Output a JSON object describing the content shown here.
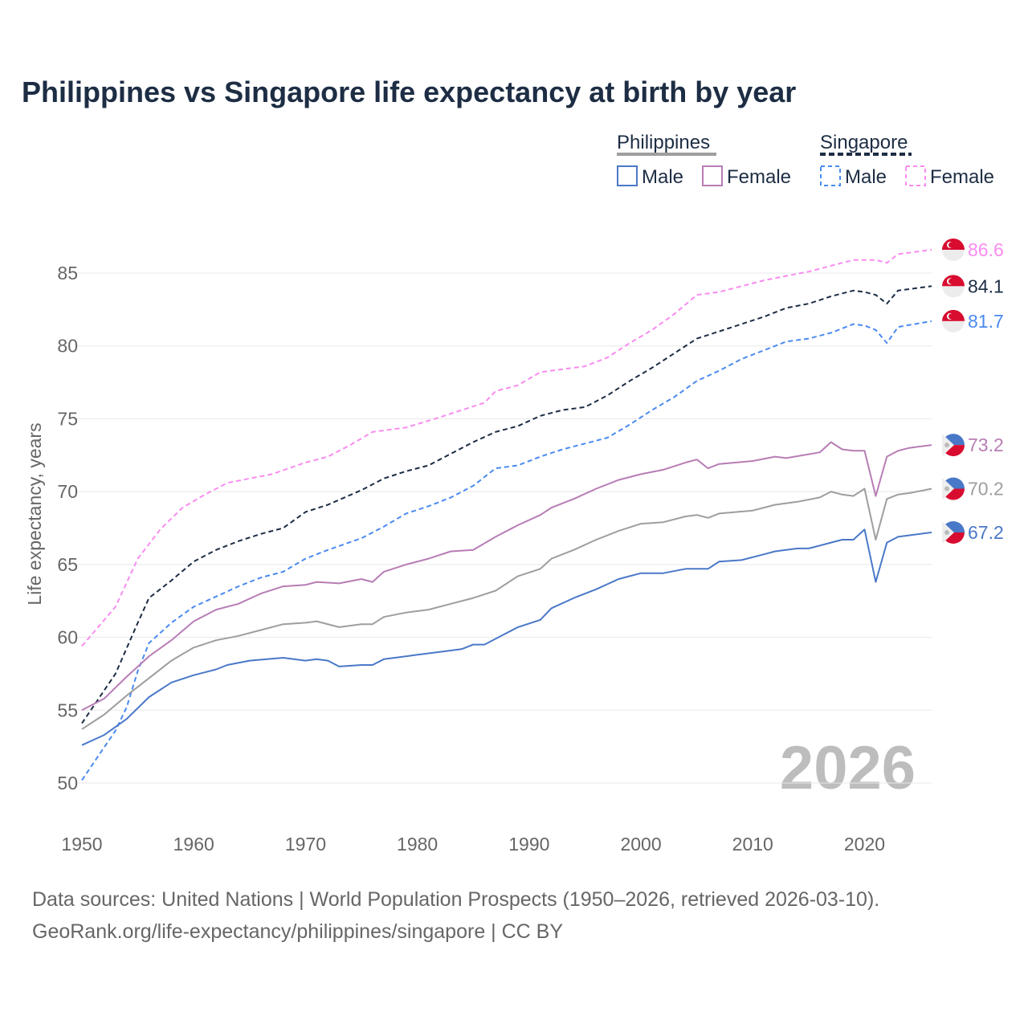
{
  "chart_data": {
    "type": "line",
    "title": "Philippines vs Singapore life expectancy at birth by year",
    "xlabel": "",
    "ylabel": "Life expectancy, years",
    "xlim": [
      1950,
      2026
    ],
    "ylim": [
      50,
      85
    ],
    "xticks": [
      "1950",
      "1960",
      "1970",
      "1980",
      "1990",
      "2000",
      "2010",
      "2020"
    ],
    "yticks": [
      "50",
      "55",
      "60",
      "65",
      "70",
      "75",
      "80",
      "85"
    ],
    "grid": true,
    "year_watermark": "2026",
    "legend": {
      "placement": "top-right",
      "groups": [
        {
          "name": "Philippines",
          "color": "#9e9e9e",
          "dash": false,
          "items": [
            {
              "label": "Male",
              "color": "#4a78c8"
            },
            {
              "label": "Female",
              "color": "#b77db5"
            }
          ]
        },
        {
          "name": "Singapore",
          "color": "#1d2d44",
          "dash": true,
          "items": [
            {
              "label": "Male",
              "color": "#4a8af0"
            },
            {
              "label": "Female",
              "color": "#f98cf0"
            }
          ]
        }
      ]
    },
    "series": [
      {
        "name": "Singapore Female",
        "country": "singapore",
        "color": "#f98cf0",
        "dash": true,
        "end_label": "86.6",
        "points": [
          [
            1950,
            59.4
          ],
          [
            1953,
            62.1
          ],
          [
            1955,
            65.4
          ],
          [
            1957,
            67.4
          ],
          [
            1959,
            68.9
          ],
          [
            1961,
            69.8
          ],
          [
            1963,
            70.6
          ],
          [
            1965,
            70.9
          ],
          [
            1967,
            71.2
          ],
          [
            1970,
            72.0
          ],
          [
            1972,
            72.4
          ],
          [
            1974,
            73.2
          ],
          [
            1976,
            74.1
          ],
          [
            1979,
            74.4
          ],
          [
            1982,
            75.1
          ],
          [
            1984,
            75.6
          ],
          [
            1986,
            76.1
          ],
          [
            1987,
            76.9
          ],
          [
            1989,
            77.3
          ],
          [
            1991,
            78.2
          ],
          [
            1993,
            78.4
          ],
          [
            1995,
            78.6
          ],
          [
            1997,
            79.2
          ],
          [
            1999,
            80.2
          ],
          [
            2001,
            81.1
          ],
          [
            2003,
            82.2
          ],
          [
            2005,
            83.5
          ],
          [
            2007,
            83.7
          ],
          [
            2009,
            84.1
          ],
          [
            2011,
            84.5
          ],
          [
            2013,
            84.8
          ],
          [
            2015,
            85.1
          ],
          [
            2017,
            85.5
          ],
          [
            2019,
            85.9
          ],
          [
            2021,
            85.9
          ],
          [
            2022,
            85.7
          ],
          [
            2023,
            86.3
          ],
          [
            2026,
            86.6
          ]
        ]
      },
      {
        "name": "Singapore",
        "country": "singapore",
        "color": "#1d2d44",
        "dash": true,
        "end_label": "84.1",
        "points": [
          [
            1950,
            54.1
          ],
          [
            1953,
            57.5
          ],
          [
            1955,
            61.0
          ],
          [
            1956,
            62.7
          ],
          [
            1958,
            63.9
          ],
          [
            1960,
            65.2
          ],
          [
            1962,
            66.0
          ],
          [
            1964,
            66.6
          ],
          [
            1966,
            67.1
          ],
          [
            1968,
            67.5
          ],
          [
            1970,
            68.6
          ],
          [
            1972,
            69.1
          ],
          [
            1975,
            70.1
          ],
          [
            1977,
            70.9
          ],
          [
            1979,
            71.4
          ],
          [
            1981,
            71.8
          ],
          [
            1983,
            72.6
          ],
          [
            1985,
            73.4
          ],
          [
            1987,
            74.1
          ],
          [
            1989,
            74.5
          ],
          [
            1991,
            75.2
          ],
          [
            1993,
            75.6
          ],
          [
            1995,
            75.8
          ],
          [
            1997,
            76.6
          ],
          [
            1999,
            77.6
          ],
          [
            2001,
            78.5
          ],
          [
            2003,
            79.5
          ],
          [
            2005,
            80.5
          ],
          [
            2007,
            81.0
          ],
          [
            2009,
            81.5
          ],
          [
            2011,
            82.0
          ],
          [
            2013,
            82.6
          ],
          [
            2015,
            82.9
          ],
          [
            2017,
            83.4
          ],
          [
            2019,
            83.8
          ],
          [
            2020,
            83.7
          ],
          [
            2021,
            83.5
          ],
          [
            2022,
            82.9
          ],
          [
            2023,
            83.8
          ],
          [
            2026,
            84.1
          ]
        ]
      },
      {
        "name": "Singapore Male",
        "country": "singapore",
        "color": "#4a8af0",
        "dash": true,
        "end_label": "81.7",
        "points": [
          [
            1950,
            50.2
          ],
          [
            1953,
            53.6
          ],
          [
            1954,
            55.2
          ],
          [
            1955,
            57.7
          ],
          [
            1956,
            59.6
          ],
          [
            1958,
            61.0
          ],
          [
            1960,
            62.1
          ],
          [
            1962,
            62.8
          ],
          [
            1964,
            63.5
          ],
          [
            1966,
            64.1
          ],
          [
            1968,
            64.5
          ],
          [
            1970,
            65.4
          ],
          [
            1972,
            66.0
          ],
          [
            1975,
            66.8
          ],
          [
            1977,
            67.6
          ],
          [
            1979,
            68.5
          ],
          [
            1981,
            69.0
          ],
          [
            1983,
            69.6
          ],
          [
            1985,
            70.4
          ],
          [
            1987,
            71.6
          ],
          [
            1989,
            71.8
          ],
          [
            1991,
            72.4
          ],
          [
            1993,
            72.9
          ],
          [
            1995,
            73.3
          ],
          [
            1997,
            73.7
          ],
          [
            1999,
            74.6
          ],
          [
            2001,
            75.6
          ],
          [
            2003,
            76.5
          ],
          [
            2005,
            77.6
          ],
          [
            2007,
            78.3
          ],
          [
            2009,
            79.1
          ],
          [
            2011,
            79.7
          ],
          [
            2013,
            80.3
          ],
          [
            2015,
            80.5
          ],
          [
            2017,
            80.9
          ],
          [
            2019,
            81.5
          ],
          [
            2020,
            81.4
          ],
          [
            2021,
            81.1
          ],
          [
            2022,
            80.2
          ],
          [
            2023,
            81.3
          ],
          [
            2026,
            81.7
          ]
        ]
      },
      {
        "name": "Philippines Female",
        "country": "philippines",
        "color": "#b77db5",
        "dash": false,
        "end_label": "73.2",
        "points": [
          [
            1950,
            55.0
          ],
          [
            1952,
            55.8
          ],
          [
            1954,
            57.3
          ],
          [
            1956,
            58.7
          ],
          [
            1958,
            59.8
          ],
          [
            1960,
            61.1
          ],
          [
            1962,
            61.9
          ],
          [
            1964,
            62.3
          ],
          [
            1966,
            63.0
          ],
          [
            1968,
            63.5
          ],
          [
            1970,
            63.6
          ],
          [
            1971,
            63.8
          ],
          [
            1973,
            63.7
          ],
          [
            1975,
            64.0
          ],
          [
            1976,
            63.8
          ],
          [
            1977,
            64.5
          ],
          [
            1979,
            65.0
          ],
          [
            1981,
            65.4
          ],
          [
            1983,
            65.9
          ],
          [
            1985,
            66.0
          ],
          [
            1987,
            66.9
          ],
          [
            1989,
            67.7
          ],
          [
            1991,
            68.4
          ],
          [
            1992,
            68.9
          ],
          [
            1994,
            69.5
          ],
          [
            1996,
            70.2
          ],
          [
            1998,
            70.8
          ],
          [
            2000,
            71.2
          ],
          [
            2002,
            71.5
          ],
          [
            2004,
            72.0
          ],
          [
            2005,
            72.2
          ],
          [
            2006,
            71.6
          ],
          [
            2007,
            71.9
          ],
          [
            2010,
            72.1
          ],
          [
            2012,
            72.4
          ],
          [
            2013,
            72.3
          ],
          [
            2016,
            72.7
          ],
          [
            2017,
            73.4
          ],
          [
            2018,
            72.9
          ],
          [
            2019,
            72.8
          ],
          [
            2020,
            72.8
          ],
          [
            2021,
            69.7
          ],
          [
            2022,
            72.4
          ],
          [
            2023,
            72.8
          ],
          [
            2024,
            73.0
          ],
          [
            2026,
            73.2
          ]
        ]
      },
      {
        "name": "Philippines",
        "country": "philippines",
        "color": "#9e9e9e",
        "dash": false,
        "end_label": "70.2",
        "points": [
          [
            1950,
            53.7
          ],
          [
            1952,
            54.7
          ],
          [
            1954,
            56.0
          ],
          [
            1956,
            57.2
          ],
          [
            1958,
            58.4
          ],
          [
            1960,
            59.3
          ],
          [
            1962,
            59.8
          ],
          [
            1964,
            60.1
          ],
          [
            1966,
            60.5
          ],
          [
            1968,
            60.9
          ],
          [
            1970,
            61.0
          ],
          [
            1971,
            61.1
          ],
          [
            1973,
            60.7
          ],
          [
            1975,
            60.9
          ],
          [
            1976,
            60.9
          ],
          [
            1977,
            61.4
          ],
          [
            1979,
            61.7
          ],
          [
            1981,
            61.9
          ],
          [
            1983,
            62.3
          ],
          [
            1985,
            62.7
          ],
          [
            1987,
            63.2
          ],
          [
            1989,
            64.2
          ],
          [
            1991,
            64.7
          ],
          [
            1992,
            65.4
          ],
          [
            1994,
            66.0
          ],
          [
            1996,
            66.7
          ],
          [
            1998,
            67.3
          ],
          [
            2000,
            67.8
          ],
          [
            2002,
            67.9
          ],
          [
            2004,
            68.3
          ],
          [
            2005,
            68.4
          ],
          [
            2006,
            68.2
          ],
          [
            2007,
            68.5
          ],
          [
            2010,
            68.7
          ],
          [
            2012,
            69.1
          ],
          [
            2014,
            69.3
          ],
          [
            2016,
            69.6
          ],
          [
            2017,
            70.0
          ],
          [
            2018,
            69.8
          ],
          [
            2019,
            69.7
          ],
          [
            2020,
            70.2
          ],
          [
            2021,
            66.7
          ],
          [
            2022,
            69.5
          ],
          [
            2023,
            69.8
          ],
          [
            2024,
            69.9
          ],
          [
            2026,
            70.2
          ]
        ]
      },
      {
        "name": "Philippines Male",
        "country": "philippines",
        "color": "#4a78c8",
        "dash": false,
        "end_label": "67.2",
        "points": [
          [
            1950,
            52.6
          ],
          [
            1952,
            53.3
          ],
          [
            1954,
            54.4
          ],
          [
            1956,
            55.9
          ],
          [
            1958,
            56.9
          ],
          [
            1960,
            57.4
          ],
          [
            1962,
            57.8
          ],
          [
            1963,
            58.1
          ],
          [
            1965,
            58.4
          ],
          [
            1968,
            58.6
          ],
          [
            1970,
            58.4
          ],
          [
            1971,
            58.5
          ],
          [
            1972,
            58.4
          ],
          [
            1973,
            58.0
          ],
          [
            1975,
            58.1
          ],
          [
            1976,
            58.1
          ],
          [
            1977,
            58.5
          ],
          [
            1980,
            58.8
          ],
          [
            1982,
            59.0
          ],
          [
            1984,
            59.2
          ],
          [
            1985,
            59.5
          ],
          [
            1986,
            59.5
          ],
          [
            1987,
            59.9
          ],
          [
            1989,
            60.7
          ],
          [
            1991,
            61.2
          ],
          [
            1992,
            62.0
          ],
          [
            1994,
            62.7
          ],
          [
            1996,
            63.3
          ],
          [
            1998,
            64.0
          ],
          [
            2000,
            64.4
          ],
          [
            2002,
            64.4
          ],
          [
            2004,
            64.7
          ],
          [
            2006,
            64.7
          ],
          [
            2007,
            65.2
          ],
          [
            2009,
            65.3
          ],
          [
            2011,
            65.7
          ],
          [
            2012,
            65.9
          ],
          [
            2014,
            66.1
          ],
          [
            2015,
            66.1
          ],
          [
            2016,
            66.3
          ],
          [
            2017,
            66.5
          ],
          [
            2018,
            66.7
          ],
          [
            2019,
            66.7
          ],
          [
            2020,
            67.4
          ],
          [
            2021,
            63.8
          ],
          [
            2022,
            66.5
          ],
          [
            2023,
            66.9
          ],
          [
            2026,
            67.2
          ]
        ]
      }
    ]
  },
  "footer": {
    "line1": "Data sources: United Nations | World Population Prospects (1950–2026, retrieved 2026-03-10).",
    "line2": "GeoRank.org/life-expectancy/philippines/singapore | CC BY"
  }
}
